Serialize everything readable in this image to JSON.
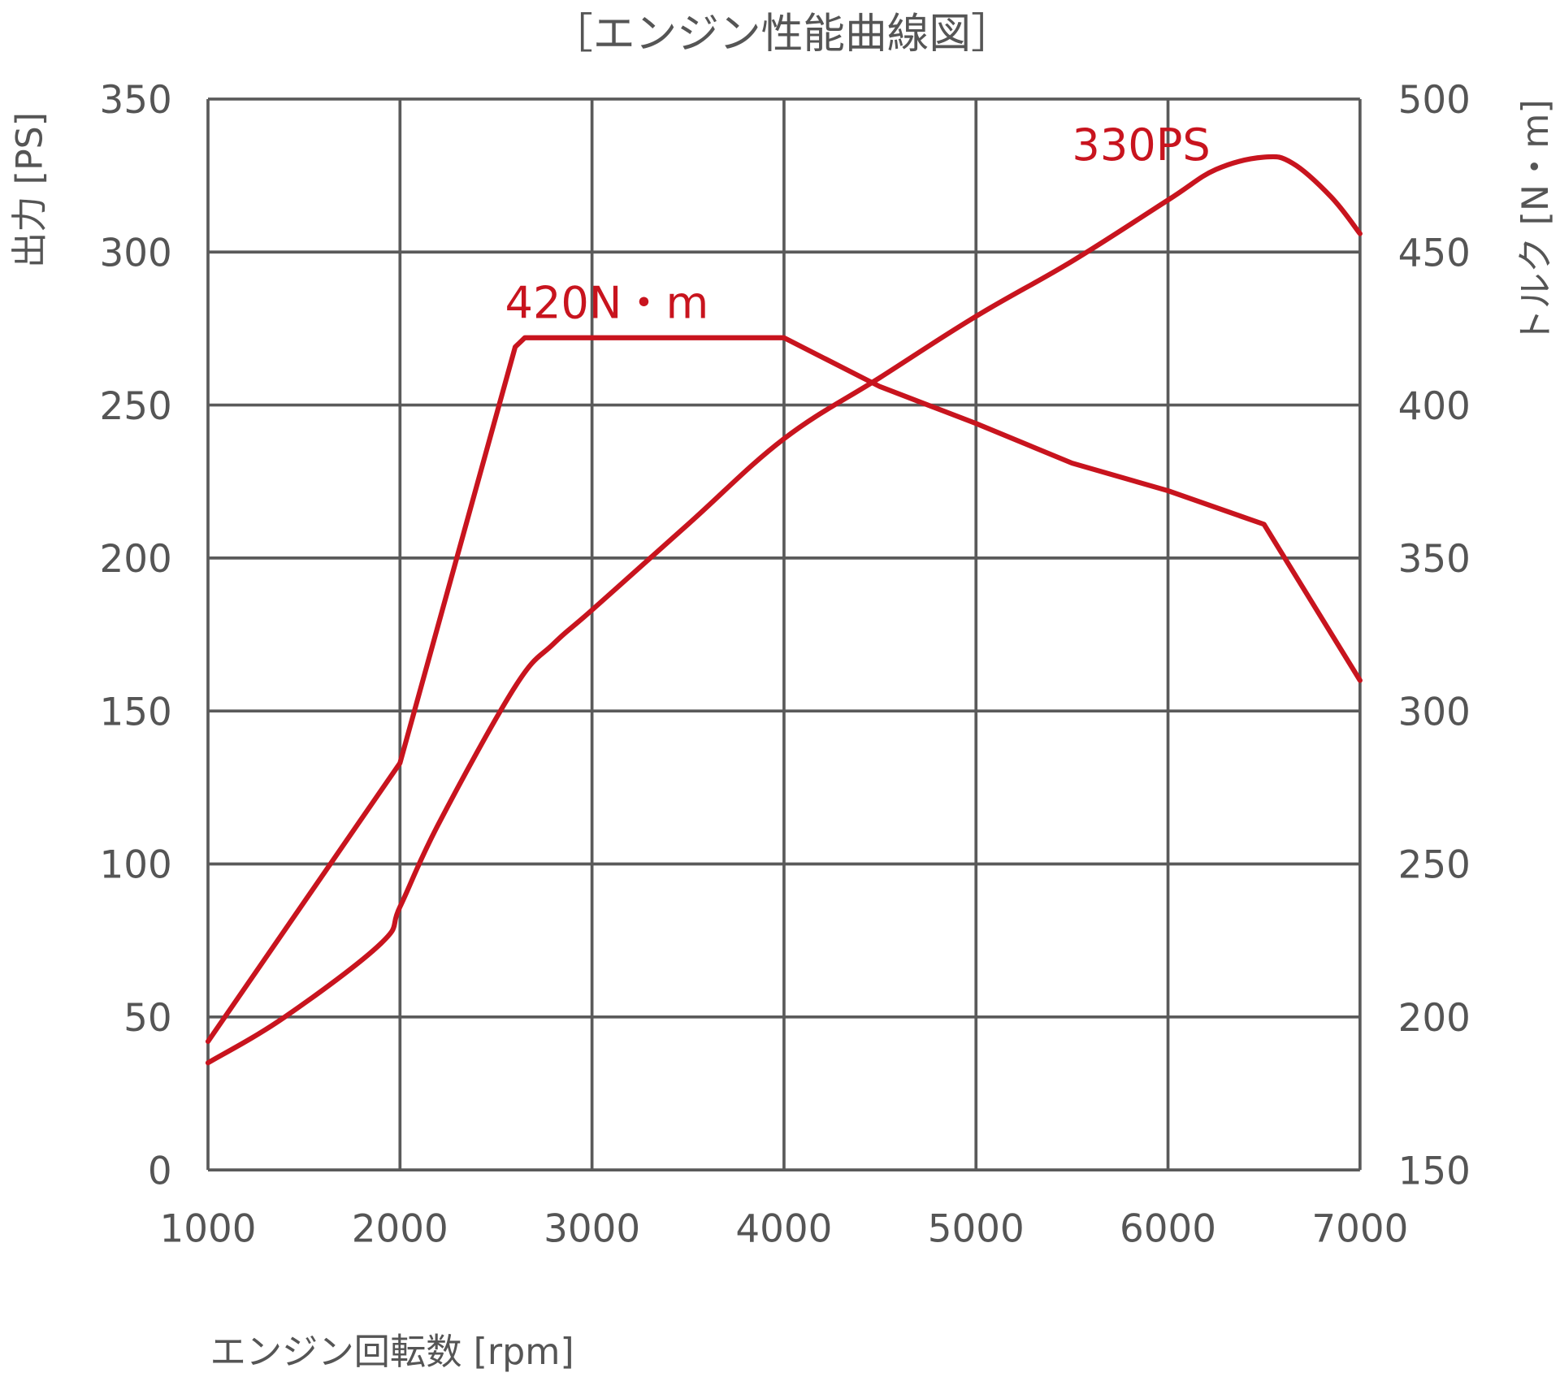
{
  "chart_data": {
    "type": "line",
    "title": "［エンジン性能曲線図］",
    "xlabel": "エンジン回転数 [rpm]",
    "ylabel": "出力 [PS]",
    "y2label": "トルク [N・m]",
    "xlim": [
      1000,
      7000
    ],
    "ylim": [
      0,
      350
    ],
    "y2lim": [
      150,
      500
    ],
    "x_ticks": [
      "1000",
      "2000",
      "3000",
      "4000",
      "5000",
      "6000",
      "7000"
    ],
    "y_ticks": [
      "0",
      "50",
      "100",
      "150",
      "200",
      "250",
      "300",
      "350"
    ],
    "y2_ticks": [
      "150",
      "200",
      "250",
      "300",
      "350",
      "400",
      "450",
      "500"
    ],
    "grid": true,
    "series": [
      {
        "name": "出力",
        "axis": "left",
        "unit": "PS",
        "color": "#c8141e",
        "x": [
          1000,
          1400,
          1900,
          2000,
          2200,
          2600,
          2800,
          3000,
          3500,
          4000,
          4500,
          5000,
          5500,
          6000,
          6250,
          6500,
          6650,
          6850,
          7000
        ],
        "values": [
          35,
          50,
          74,
          86,
          113,
          158,
          172,
          183,
          211,
          239,
          259,
          279,
          297,
          317,
          327,
          331,
          329,
          318,
          306
        ]
      },
      {
        "name": "トルク",
        "axis": "right",
        "unit": "N・m",
        "color": "#c8141e",
        "x": [
          1000,
          2000,
          2600,
          2650,
          4000,
          4500,
          5000,
          5500,
          6000,
          6500,
          7000
        ],
        "values": [
          192,
          283,
          419,
          422,
          422,
          406,
          394,
          381,
          372,
          361,
          310
        ]
      }
    ],
    "annotations": [
      {
        "text": "420N・m",
        "series": "トルク",
        "x": 3000,
        "y": 420
      },
      {
        "text": "330PS",
        "series": "出力",
        "x": 6000,
        "y": 330
      }
    ]
  },
  "labels": {
    "title": "［エンジン性能曲線図］",
    "xlabel": "エンジン回転数 [rpm]",
    "ylabel_left": "出力 [PS]",
    "ylabel_right": "トルク [N・m]",
    "annot_torque": "420N・m",
    "annot_power": "330PS"
  }
}
